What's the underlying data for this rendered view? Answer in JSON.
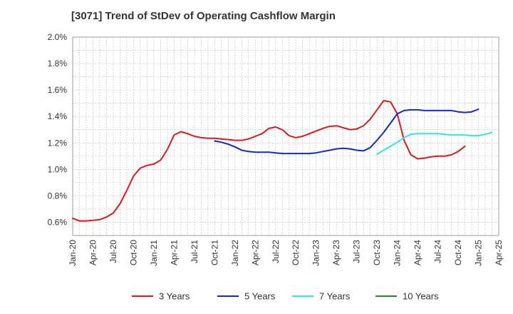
{
  "chart_data": {
    "type": "line",
    "title": "[3071]  Trend of StDev of Operating Cashflow Margin",
    "xlabel": "",
    "ylabel": "",
    "grid": true,
    "legend_position": "bottom",
    "x_ticks": [
      "Jan-20",
      "Apr-20",
      "Jul-20",
      "Oct-20",
      "Jan-21",
      "Apr-21",
      "Jul-21",
      "Oct-21",
      "Jan-22",
      "Apr-22",
      "Jul-22",
      "Oct-22",
      "Jan-23",
      "Apr-23",
      "Jul-23",
      "Oct-23",
      "Jan-24",
      "Apr-24",
      "Jul-24",
      "Oct-24",
      "Jan-25",
      "Apr-25"
    ],
    "y_ticks": [
      "0.6%",
      "0.8%",
      "1.0%",
      "1.2%",
      "1.4%",
      "1.6%",
      "1.8%",
      "2.0%"
    ],
    "ylim": [
      0.5,
      2.0
    ],
    "y_tick_values": [
      0.6,
      0.8,
      1.0,
      1.2,
      1.4,
      1.6,
      1.8,
      2.0
    ],
    "x_start": "Jan-20",
    "x_end": "Apr-25",
    "series": [
      {
        "name": "3 Years",
        "color": "#dd1a1a",
        "start": "Jan-20",
        "values": [
          0.63,
          0.61,
          0.61,
          0.615,
          0.62,
          0.64,
          0.67,
          0.74,
          0.84,
          0.95,
          1.01,
          1.03,
          1.04,
          1.07,
          1.15,
          1.26,
          1.285,
          1.27,
          1.25,
          1.24,
          1.235,
          1.235,
          1.23,
          1.225,
          1.22,
          1.22,
          1.23,
          1.25,
          1.27,
          1.31,
          1.32,
          1.3,
          1.255,
          1.24,
          1.25,
          1.27,
          1.29,
          1.31,
          1.325,
          1.33,
          1.315,
          1.3,
          1.305,
          1.33,
          1.38,
          1.45,
          1.52,
          1.51,
          1.42,
          1.22,
          1.11,
          1.08,
          1.085,
          1.095,
          1.1,
          1.1,
          1.11,
          1.135,
          1.175
        ]
      },
      {
        "name": "5 Years",
        "color": "#1428c8",
        "start": "Oct-21",
        "values": [
          1.215,
          1.205,
          1.19,
          1.17,
          1.145,
          1.135,
          1.13,
          1.13,
          1.13,
          1.125,
          1.12,
          1.12,
          1.12,
          1.12,
          1.12,
          1.125,
          1.135,
          1.145,
          1.155,
          1.16,
          1.155,
          1.145,
          1.14,
          1.165,
          1.22,
          1.28,
          1.35,
          1.42,
          1.445,
          1.45,
          1.45,
          1.445,
          1.445,
          1.445,
          1.445,
          1.445,
          1.435,
          1.43,
          1.435,
          1.455
        ]
      },
      {
        "name": "7 Years",
        "color": "#33e5e5",
        "start": "Oct-23",
        "values": [
          1.115,
          1.145,
          1.175,
          1.205,
          1.24,
          1.265,
          1.27,
          1.27,
          1.27,
          1.27,
          1.265,
          1.26,
          1.26,
          1.26,
          1.255,
          1.255,
          1.265,
          1.28
        ]
      },
      {
        "name": "10 Years",
        "color": "#228b22",
        "start": "Jan-25",
        "values": []
      }
    ]
  }
}
